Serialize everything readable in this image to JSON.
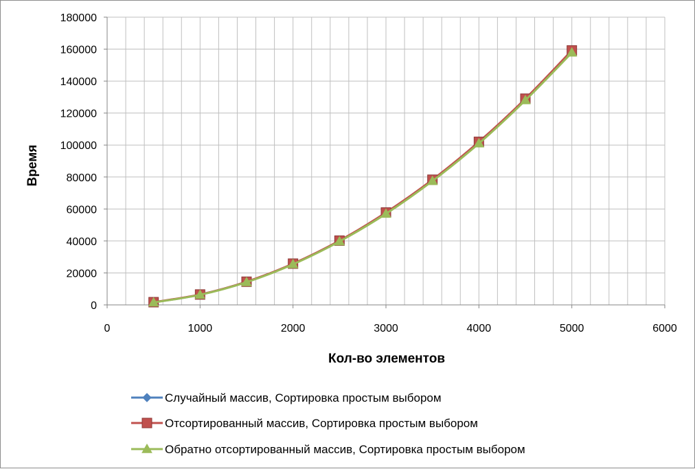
{
  "chart_data": {
    "type": "line",
    "xlabel": "Кол-во элементов",
    "ylabel": "Время",
    "xlim": [
      0,
      6000
    ],
    "ylim": [
      0,
      180000
    ],
    "x_ticks": [
      "0",
      "1000",
      "2000",
      "3000",
      "4000",
      "5000",
      "6000"
    ],
    "y_ticks": [
      "0",
      "20000",
      "40000",
      "60000",
      "80000",
      "100000",
      "120000",
      "140000",
      "160000",
      "180000"
    ],
    "x_tick_values": [
      0,
      1000,
      2000,
      3000,
      4000,
      5000,
      6000
    ],
    "y_tick_values": [
      0,
      20000,
      40000,
      60000,
      80000,
      100000,
      120000,
      140000,
      160000,
      180000
    ],
    "grid": true,
    "legend_position": "bottom",
    "x": [
      500,
      1000,
      1500,
      2000,
      2500,
      3000,
      3500,
      4000,
      4500,
      5000
    ],
    "series": [
      {
        "name": "Случайный массив, Сортировка простым выбором",
        "color": "#4f81bd",
        "marker": "diamond",
        "values": [
          1600,
          6400,
          14400,
          25600,
          40000,
          57500,
          78000,
          101500,
          128500,
          158500
        ]
      },
      {
        "name": "Отсортированный массив, Сортировка простым выбором",
        "color": "#c0504d",
        "marker": "square",
        "values": [
          1700,
          6500,
          14500,
          25800,
          40200,
          57800,
          78300,
          102000,
          129000,
          159200
        ]
      },
      {
        "name": "Обратно отсортированный массив, Сортировка простым выбором",
        "color": "#9bbb59",
        "marker": "triangle",
        "values": [
          1500,
          6300,
          14200,
          25400,
          39700,
          57000,
          77500,
          101000,
          128000,
          157800
        ]
      }
    ]
  }
}
